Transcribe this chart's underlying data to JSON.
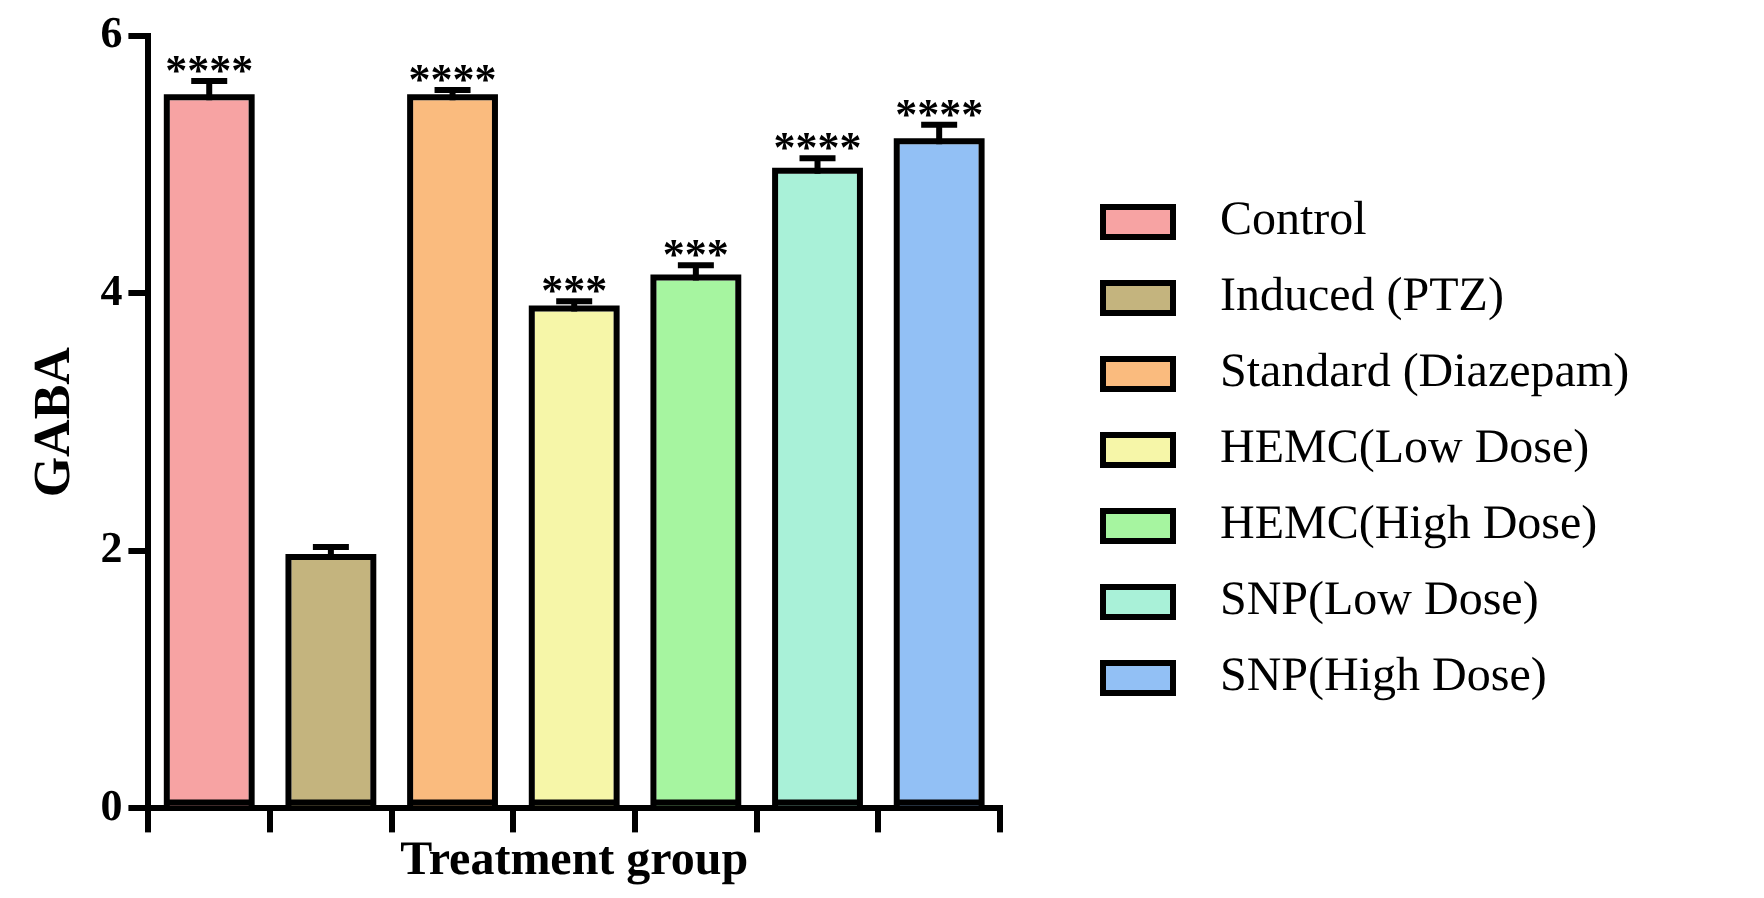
{
  "chart_data": {
    "type": "bar",
    "xlabel": "Treatment group",
    "ylabel": "GABA",
    "categories": [
      null,
      null,
      null,
      null,
      null,
      null,
      null
    ],
    "series": [
      {
        "name": "Control",
        "color": "#f7a3a3",
        "values": [
          5.5,
          null,
          null,
          null,
          null,
          null,
          null
        ],
        "errors": [
          [
            5.5,
            5.65
          ],
          null,
          null,
          null,
          null,
          null,
          null
        ]
      },
      {
        "name": "Induced (PTZ)",
        "color": "#c4b47e",
        "values": [
          null,
          1.93,
          null,
          null,
          null,
          null,
          null
        ],
        "errors": [
          null,
          [
            1.93,
            2.03
          ],
          null,
          null,
          null,
          null,
          null
        ]
      },
      {
        "name": "Standard (Diazepam)",
        "color": "#fabb7e",
        "values": [
          null,
          null,
          5.5,
          null,
          null,
          null,
          null
        ],
        "errors": [
          null,
          null,
          [
            5.5,
            5.58
          ],
          null,
          null,
          null,
          null
        ]
      },
      {
        "name": "HEMC(Low Dose)",
        "color": "#f6f6a8",
        "values": [
          null,
          null,
          null,
          3.86,
          null,
          null,
          null
        ],
        "errors": [
          null,
          null,
          null,
          [
            3.86,
            3.94
          ],
          null,
          null,
          null
        ]
      },
      {
        "name": "HEMC(High Dose)",
        "color": "#a6f5a0",
        "values": [
          null,
          null,
          null,
          null,
          4.1,
          null,
          null
        ],
        "errors": [
          null,
          null,
          null,
          null,
          [
            4.1,
            4.22
          ],
          null,
          null
        ]
      },
      {
        "name": "SNP(Low Dose)",
        "color": "#a9f1d8",
        "values": [
          null,
          null,
          null,
          null,
          null,
          4.93,
          null
        ],
        "errors": [
          null,
          null,
          null,
          null,
          null,
          [
            4.93,
            5.05
          ],
          null
        ]
      },
      {
        "name": "SNP(High Dose)",
        "color": "#92c0f5",
        "values": [
          null,
          null,
          null,
          null,
          null,
          null,
          5.16
        ],
        "errors": [
          null,
          null,
          null,
          null,
          null,
          null,
          [
            5.16,
            5.31
          ]
        ]
      }
    ],
    "ylim": [
      0,
      6
    ],
    "yticks": [
      0,
      2,
      4,
      6
    ],
    "grid": false,
    "legend": "right",
    "tick_labels": "y",
    "annotations": [
      {
        "text": "****",
        "y": 5.65
      },
      {
        "text": "****",
        "y": 5.58
      },
      {
        "text": "***",
        "y": 3.94
      },
      {
        "text": "***",
        "y": 4.22
      },
      {
        "text": "****",
        "y": 5.05
      },
      {
        "text": "****",
        "y": 5.31
      }
    ]
  }
}
